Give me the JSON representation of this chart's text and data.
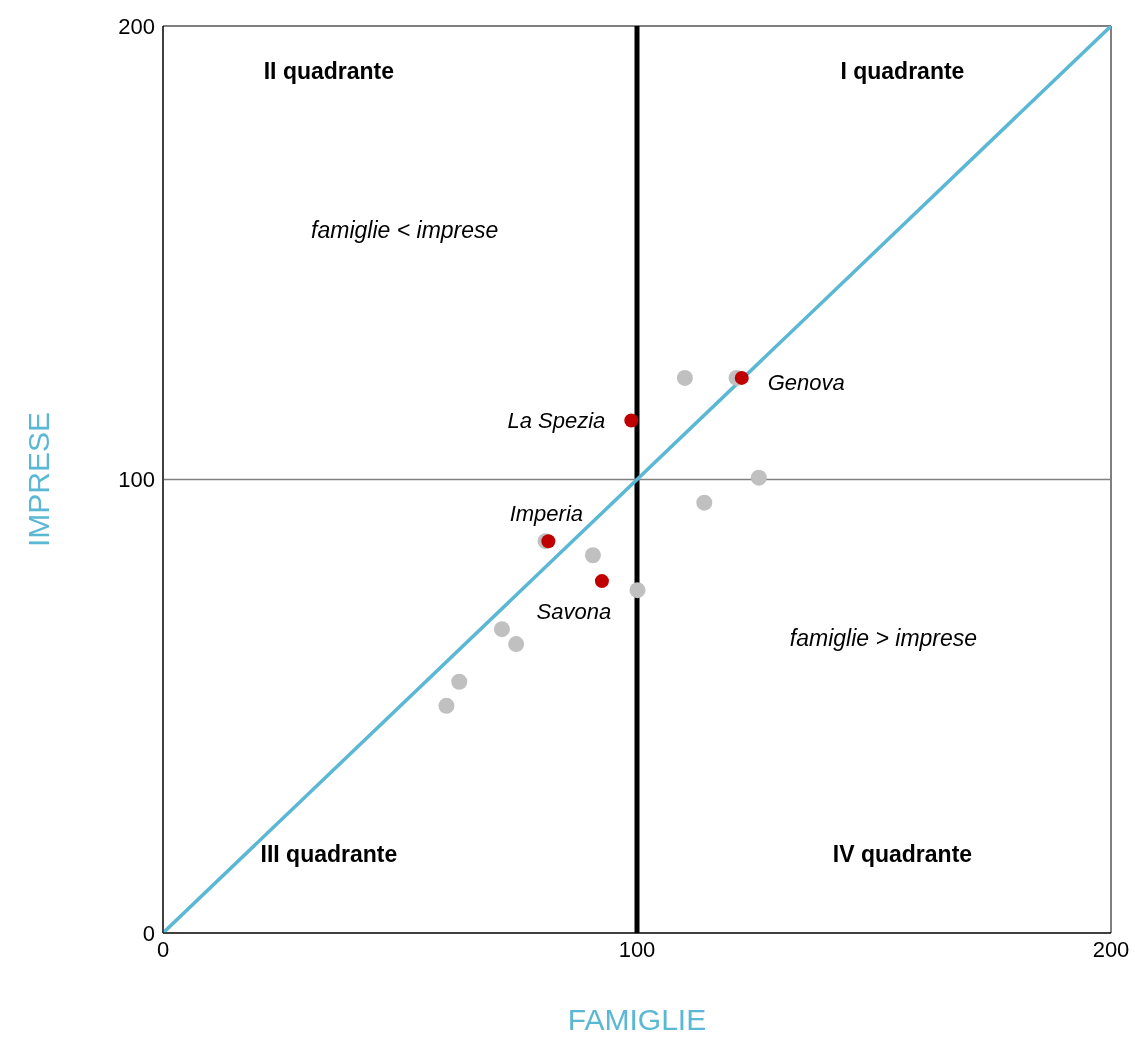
{
  "chart_data": {
    "type": "scatter",
    "xlabel": "FAMIGLIE",
    "ylabel": "IMPRESE",
    "xlim": [
      0,
      200
    ],
    "ylim": [
      0,
      200
    ],
    "xticks": [
      0,
      100,
      200
    ],
    "yticks": [
      0,
      100,
      200
    ],
    "grid": false,
    "marker": "circle",
    "series": [
      {
        "type": "line",
        "color": "#5bb8d4",
        "x": [
          0,
          200
        ],
        "values": [
          0,
          200
        ],
        "marker": "none",
        "line_style": "solid"
      },
      {
        "color": "#c0c0c0",
        "x": [
          110.1,
          121,
          125.7,
          114.2,
          90.7,
          100.1,
          80.7,
          71.5,
          74.5,
          62.5,
          59.8
        ],
        "values": [
          122.4,
          122.4,
          100.4,
          94.9,
          83.3,
          75.6,
          86.4,
          67.0,
          63.7,
          55.4,
          50.1
        ]
      },
      {
        "color": "#c00000",
        "x": [
          122.1,
          98.8,
          81.3,
          92.6
        ],
        "values": [
          122.4,
          113,
          86.4,
          77.6
        ]
      }
    ],
    "ref_lines": [
      {
        "axis": "x",
        "value": 100,
        "label": null,
        "color": "#000000"
      },
      {
        "axis": "y",
        "value": 100,
        "label": null,
        "color": "#808080"
      }
    ],
    "annotations": [
      "II quadrante",
      "I quadrante",
      "III quadrante",
      "IV quadrante",
      "famiglie < imprese",
      "famiglie > imprese",
      {
        "text": "Genova",
        "x": 122.1,
        "y": 122.4
      },
      {
        "text": "La Spezia",
        "x": 98.8,
        "y": 113
      },
      {
        "text": "Imperia",
        "x": 81.3,
        "y": 86.4
      },
      {
        "text": "Savona",
        "x": 92.6,
        "y": 77.6
      }
    ]
  }
}
